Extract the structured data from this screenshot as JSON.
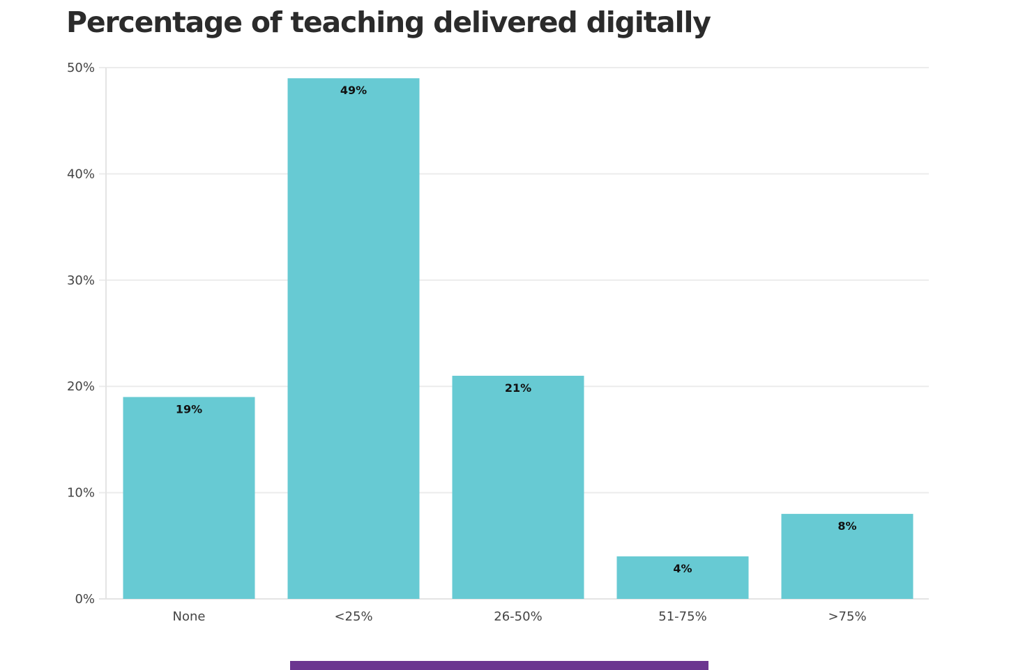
{
  "chart_data": {
    "type": "bar",
    "title": "Percentage of teaching delivered digitally",
    "xlabel": "",
    "ylabel": "",
    "categories": [
      "None",
      "<25%",
      "26-50%",
      "51-75%",
      ">75%"
    ],
    "values": [
      19,
      49,
      21,
      4,
      8
    ],
    "data_labels": [
      "19%",
      "49%",
      "21%",
      "4%",
      "8%"
    ],
    "ylim": [
      0,
      50
    ],
    "yticks": [
      0,
      10,
      20,
      30,
      40,
      50
    ],
    "ytick_labels": [
      "0%",
      "10%",
      "20%",
      "30%",
      "40%",
      "50%"
    ],
    "grid": true,
    "legend": "none"
  },
  "colors": {
    "bar": "#67cad3",
    "gridline": "#ececec",
    "axis": "#e4e4e4",
    "bottom_bar": "#6b3590"
  }
}
